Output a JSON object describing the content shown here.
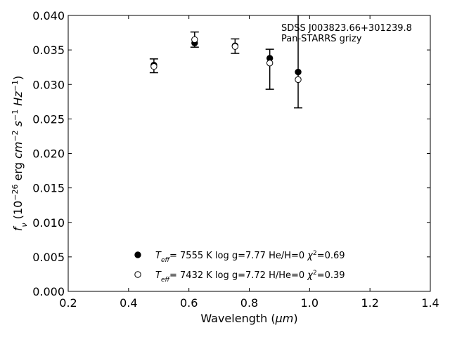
{
  "chart_data": {
    "type": "scatter",
    "x": [
      0.484,
      0.619,
      0.753,
      0.868,
      0.962
    ],
    "observed": {
      "values": [
        0.0327,
        0.0365,
        0.03555,
        0.0322,
        0.0336
      ],
      "errors": [
        0.001,
        0.0011,
        0.00105,
        0.0029,
        0.007
      ],
      "color": "#000000"
    },
    "series": [
      {
        "name": [
          "T",
          "eff",
          "=  7555 K  log g=7.77  He/H=0  ",
          "χ",
          "2",
          "=0.69"
        ],
        "color": "#000000",
        "marker": "filled",
        "values": [
          0.0328,
          0.036,
          0.0356,
          0.0338,
          0.0318
        ]
      },
      {
        "name": [
          "T",
          "eff",
          "=  7432 K  log g=7.72  H/He=0  ",
          "χ",
          "2",
          "=0.39"
        ],
        "color": "#000000",
        "marker": "open",
        "values": [
          0.0326,
          0.0365,
          0.0355,
          0.0331,
          0.0307
        ]
      }
    ],
    "annotation": [
      "SDSS J003823.66+301239.8",
      "Pan-STARRS grizy"
    ],
    "xlabel": [
      "Wavelength (",
      "μm",
      ")"
    ],
    "ylabel": [
      "f",
      "ν",
      " (10",
      "−26",
      " erg ",
      "cm",
      "−2",
      " ",
      "s",
      "−1",
      " ",
      "Hz",
      "−1",
      ")"
    ],
    "xlim": [
      0.2,
      1.4
    ],
    "xticks": [
      0.2,
      0.4,
      0.6,
      0.8,
      {
        "value": 1.0,
        "label": "1.0"
      },
      1.2,
      1.4
    ],
    "ylim": [
      0,
      0.04
    ],
    "yticks": [
      {
        "value": 0,
        "label": "0.000"
      },
      {
        "value": 0.005,
        "label": "0.005"
      },
      {
        "value": 0.01,
        "label": "0.010"
      },
      {
        "value": 0.015,
        "label": "0.015"
      },
      {
        "value": 0.02,
        "label": "0.020"
      },
      {
        "value": 0.025,
        "label": "0.025"
      },
      {
        "value": 0.03,
        "label": "0.030"
      },
      {
        "value": 0.035,
        "label": "0.035"
      },
      {
        "value": 0.04,
        "label": "0.040"
      }
    ],
    "legend": "lower center"
  }
}
